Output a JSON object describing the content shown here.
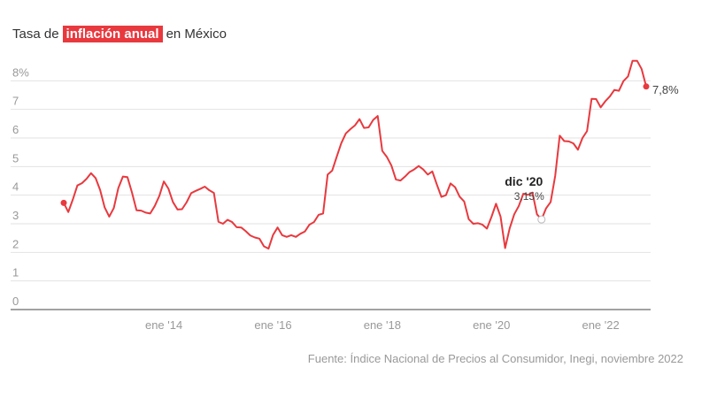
{
  "chart_data": {
    "type": "line",
    "title": {
      "before": "Tasa de",
      "highlight": "inflación anual",
      "after": "en México"
    },
    "source": "Fuente: Índice Nacional de Precios al Consumidor, Inegi, noviembre 2022",
    "x": [
      "2012-03",
      "2012-04",
      "2012-05",
      "2012-06",
      "2012-07",
      "2012-08",
      "2012-09",
      "2012-10",
      "2012-11",
      "2012-12",
      "2013-01",
      "2013-02",
      "2013-03",
      "2013-04",
      "2013-05",
      "2013-06",
      "2013-07",
      "2013-08",
      "2013-09",
      "2013-10",
      "2013-11",
      "2013-12",
      "2014-01",
      "2014-02",
      "2014-03",
      "2014-04",
      "2014-05",
      "2014-06",
      "2014-07",
      "2014-08",
      "2014-09",
      "2014-10",
      "2014-11",
      "2014-12",
      "2015-01",
      "2015-02",
      "2015-03",
      "2015-04",
      "2015-05",
      "2015-06",
      "2015-07",
      "2015-08",
      "2015-09",
      "2015-10",
      "2015-11",
      "2015-12",
      "2016-01",
      "2016-02",
      "2016-03",
      "2016-04",
      "2016-05",
      "2016-06",
      "2016-07",
      "2016-08",
      "2016-09",
      "2016-10",
      "2016-11",
      "2016-12",
      "2017-01",
      "2017-02",
      "2017-03",
      "2017-04",
      "2017-05",
      "2017-06",
      "2017-07",
      "2017-08",
      "2017-09",
      "2017-10",
      "2017-11",
      "2017-12",
      "2018-01",
      "2018-02",
      "2018-03",
      "2018-04",
      "2018-05",
      "2018-06",
      "2018-07",
      "2018-08",
      "2018-09",
      "2018-10",
      "2018-11",
      "2018-12",
      "2019-01",
      "2019-02",
      "2019-03",
      "2019-04",
      "2019-05",
      "2019-06",
      "2019-07",
      "2019-08",
      "2019-09",
      "2019-10",
      "2019-11",
      "2019-12",
      "2020-01",
      "2020-02",
      "2020-03",
      "2020-04",
      "2020-05",
      "2020-06",
      "2020-07",
      "2020-08",
      "2020-09",
      "2020-10",
      "2020-11",
      "2020-12",
      "2021-01",
      "2021-02",
      "2021-03",
      "2021-04",
      "2021-05",
      "2021-06",
      "2021-07",
      "2021-08",
      "2021-09",
      "2021-10",
      "2021-11",
      "2021-12",
      "2022-01",
      "2022-02",
      "2022-03",
      "2022-04",
      "2022-05",
      "2022-06",
      "2022-07",
      "2022-08",
      "2022-09",
      "2022-10",
      "2022-11"
    ],
    "series": [
      {
        "name": "Inflación anual",
        "color": "#e8393e",
        "values": [
          3.73,
          3.41,
          3.85,
          4.34,
          4.42,
          4.57,
          4.77,
          4.6,
          4.18,
          3.57,
          3.25,
          3.55,
          4.25,
          4.65,
          4.63,
          4.09,
          3.47,
          3.46,
          3.39,
          3.36,
          3.62,
          3.97,
          4.48,
          4.23,
          3.76,
          3.5,
          3.51,
          3.75,
          4.07,
          4.15,
          4.22,
          4.3,
          4.17,
          4.08,
          3.07,
          3.0,
          3.14,
          3.06,
          2.88,
          2.87,
          2.74,
          2.59,
          2.52,
          2.48,
          2.21,
          2.13,
          2.61,
          2.87,
          2.6,
          2.54,
          2.6,
          2.54,
          2.65,
          2.73,
          2.97,
          3.06,
          3.31,
          3.36,
          4.72,
          4.86,
          5.35,
          5.82,
          6.16,
          6.31,
          6.44,
          6.66,
          6.35,
          6.37,
          6.63,
          6.77,
          5.55,
          5.34,
          5.04,
          4.55,
          4.51,
          4.65,
          4.81,
          4.9,
          5.02,
          4.9,
          4.72,
          4.83,
          4.37,
          3.94,
          4.0,
          4.41,
          4.28,
          3.95,
          3.78,
          3.16,
          3.0,
          3.02,
          2.97,
          2.83,
          3.24,
          3.7,
          3.25,
          2.15,
          2.84,
          3.33,
          3.62,
          4.05,
          4.01,
          4.09,
          3.33,
          3.15,
          3.54,
          3.76,
          4.67,
          6.08,
          5.89,
          5.88,
          5.81,
          5.59,
          6.0,
          6.24,
          7.37,
          7.36,
          7.07,
          7.28,
          7.45,
          7.68,
          7.65,
          7.99,
          8.15,
          8.7,
          8.7,
          8.41,
          7.8
        ]
      }
    ],
    "xlim": [
      "2012-03",
      "2022-11"
    ],
    "xticks": [
      {
        "value": "2014-01",
        "label": "ene '14"
      },
      {
        "value": "2016-01",
        "label": "ene '16"
      },
      {
        "value": "2018-01",
        "label": "ene '18"
      },
      {
        "value": "2020-01",
        "label": "ene '20"
      },
      {
        "value": "2022-01",
        "label": "ene '22"
      }
    ],
    "ylim": [
      0,
      9
    ],
    "yticks": [
      0,
      1,
      2,
      3,
      4,
      5,
      6,
      7,
      {
        "value": 8,
        "label": "8%"
      }
    ],
    "grid": true,
    "annotations": [
      {
        "x": "2020-12",
        "label": "dic '20",
        "value_label": "3,15%"
      },
      {
        "x": "2022-11",
        "value_label": "7,8%"
      }
    ]
  }
}
